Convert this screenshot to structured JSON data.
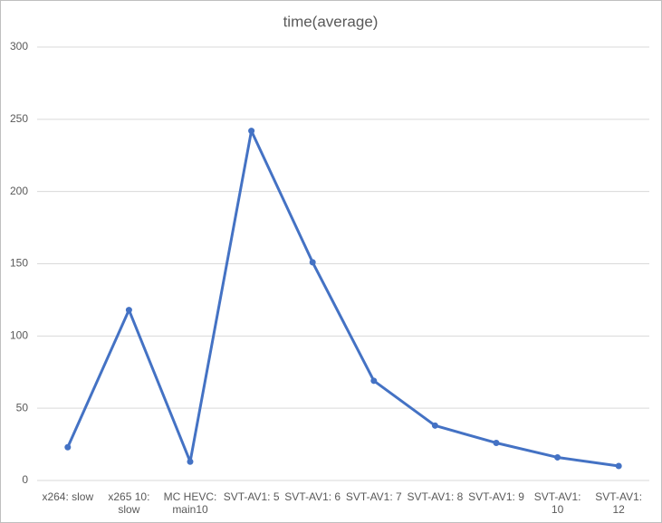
{
  "chart_data": {
    "type": "line",
    "title": "time(average)",
    "categories": [
      "x264: slow",
      "x265 10: slow",
      "MC HEVC: main10",
      "SVT-AV1: 5",
      "SVT-AV1: 6",
      "SVT-AV1: 7",
      "SVT-AV1: 8",
      "SVT-AV1: 9",
      "SVT-AV1: 10",
      "SVT-AV1: 12"
    ],
    "series": [
      {
        "name": "time(average)",
        "color": "#4472c4",
        "values": [
          23,
          118,
          13,
          242,
          151,
          69,
          38,
          26,
          16,
          10
        ]
      }
    ],
    "ylim": [
      0,
      300
    ],
    "yticks": [
      0,
      50,
      100,
      150,
      200,
      250,
      300
    ],
    "grid": true
  }
}
